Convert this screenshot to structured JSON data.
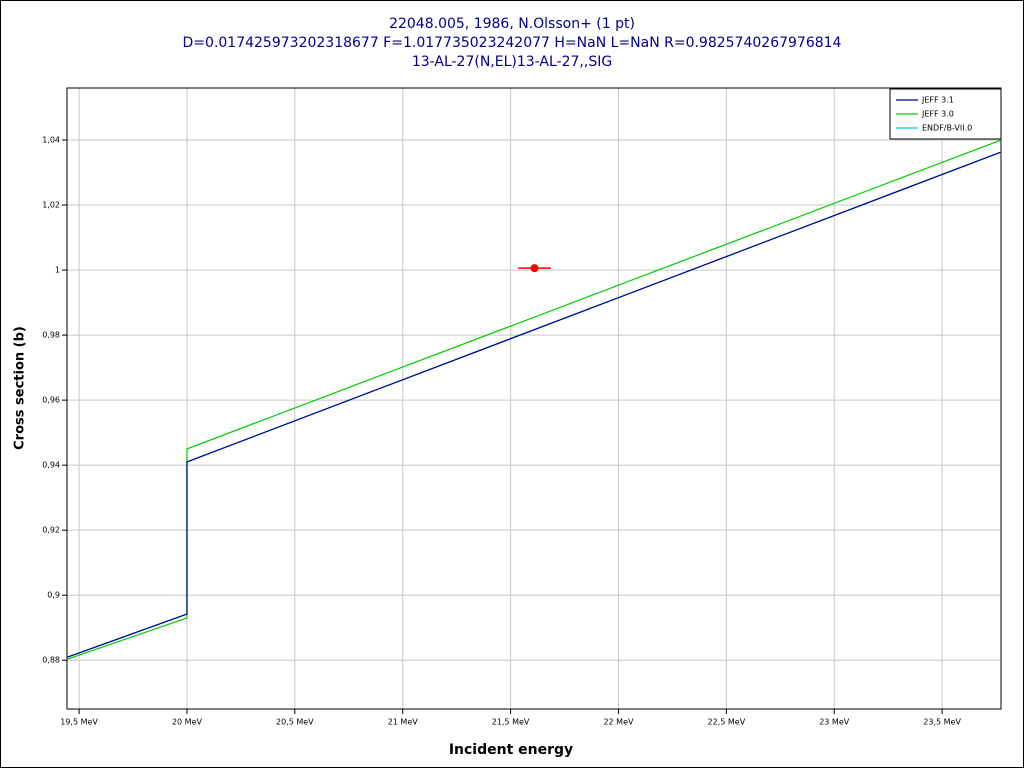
{
  "chart_data": {
    "type": "line",
    "title": "22048.005, 1986, N.Olsson+ (1 pt)",
    "subtitle": "D=0.017425973202318677 F=1.017735023242077 H=NaN L=NaN R=0.9825740267976814",
    "reaction": "13-AL-27(N,EL)13-AL-27,,SIG",
    "x_label": "Incident energy",
    "y_label": "Cross section (b)",
    "xlim": [
      19.444,
      23.773
    ],
    "ylim": [
      0.865,
      1.056
    ],
    "xticks": [
      {
        "value": 19.5,
        "label": "19,5 MeV"
      },
      {
        "value": 20,
        "label": "20 MeV"
      },
      {
        "value": 20.5,
        "label": "20,5 MeV"
      },
      {
        "value": 21,
        "label": "21 MeV"
      },
      {
        "value": 21.5,
        "label": "21,5 MeV"
      },
      {
        "value": 22,
        "label": "22 MeV"
      },
      {
        "value": 22.5,
        "label": "22,5 MeV"
      },
      {
        "value": 23,
        "label": "23 MeV"
      },
      {
        "value": 23.5,
        "label": "23,5 MeV"
      }
    ],
    "yticks": [
      {
        "value": 0.88,
        "label": "0,88"
      },
      {
        "value": 0.9,
        "label": "0,9"
      },
      {
        "value": 0.92,
        "label": "0,92"
      },
      {
        "value": 0.94,
        "label": "0,94"
      },
      {
        "value": 0.96,
        "label": "0,96"
      },
      {
        "value": 0.98,
        "label": "0,98"
      },
      1,
      {
        "value": 1.02,
        "label": "1,02"
      },
      {
        "value": 1.04,
        "label": "1,04"
      }
    ],
    "grid": true,
    "legend": "top-right",
    "series": [
      {
        "name": "JEFF 3.1",
        "color": "#00008b",
        "x": [
          19.444,
          20,
          20,
          23.773
        ],
        "values": [
          0.8809,
          0.8942,
          0.941,
          1.0363
        ]
      },
      {
        "name": "JEFF 3.0",
        "color": "#00cc00",
        "x": [
          19.444,
          20,
          20,
          23.773
        ],
        "values": [
          0.8803,
          0.893,
          0.945,
          1.04
        ]
      },
      {
        "name": "ENDF/B-VII.0",
        "color": "#00c8e8",
        "x": [
          19.444,
          20,
          20,
          20,
          23.773
        ],
        "values": [
          0.8809,
          0.8942,
          0.906,
          0.941,
          1.0363
        ]
      }
    ],
    "points": {
      "color": "#ff0000",
      "x": [
        21.611
      ],
      "values": [
        1.0006
      ],
      "xerr": [
        0.076
      ]
    }
  }
}
